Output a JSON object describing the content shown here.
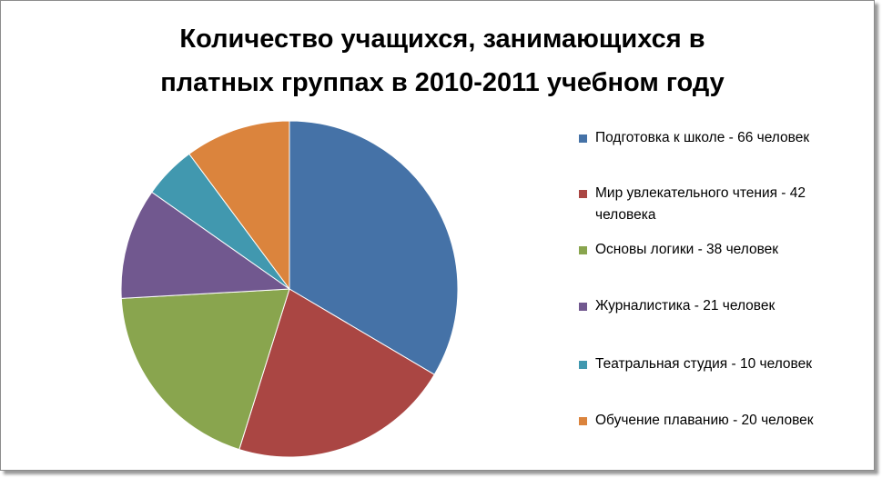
{
  "chart_data": {
    "type": "pie",
    "title": [
      "Количество учащихся, занимающихся в",
      "платных группах в 2010-2011 учебном году"
    ],
    "categories": [
      "Подготовка к школе - 66 человек",
      "Мир увлекательного чтения - 42 человека",
      "Основы логики - 38 человек",
      "Журналистика - 21 человек",
      "Театральная студия - 10 человек",
      "Обучение плаванию -  20 человек"
    ],
    "values": [
      66,
      42,
      38,
      21,
      10,
      20
    ],
    "colors": [
      "#4572a7",
      "#aa4643",
      "#89a54e",
      "#71588f",
      "#4198af",
      "#db843d"
    ],
    "legend": "right"
  }
}
